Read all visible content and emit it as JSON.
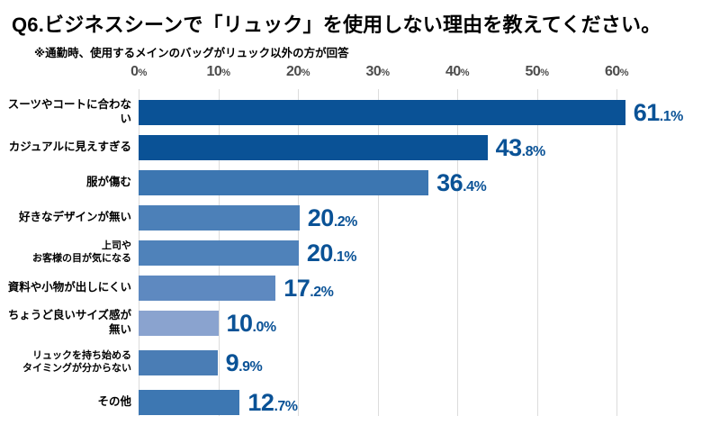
{
  "chart_data": {
    "type": "bar",
    "orientation": "horizontal",
    "title": "Q6.ビジネスシーンで「リュック」を使用しない理由を教えてください。",
    "subtitle": "※通勤時、使用するメインのバッグがリュック以外の方が回答",
    "categories": [
      "スーツやコートに合わない",
      "カジュアルに見えすぎる",
      "服が傷む",
      "好きなデザインが無い",
      "上司や\nお客様の目が気になる",
      "資料や小物が出しにくい",
      "ちょうど良いサイズ感が無い",
      "リュックを持ち始める\nタイミングが分からない",
      "その他"
    ],
    "values": [
      61.1,
      43.8,
      36.4,
      20.2,
      20.1,
      17.2,
      10.0,
      9.9,
      12.7
    ],
    "value_labels": [
      "61.1%",
      "43.8%",
      "36.4%",
      "20.2%",
      "20.1%",
      "17.2%",
      "10.0%",
      "9.9%",
      "12.7%"
    ],
    "bar_colors": [
      "#0a5296",
      "#0a5296",
      "#3c76b1",
      "#4c80b8",
      "#4f82ba",
      "#5e89c0",
      "#8aa3cf",
      "#4a7db5",
      "#3d77b2"
    ],
    "axis_ticks": [
      "0%",
      "10%",
      "20%",
      "30%",
      "40%",
      "50%",
      "60%"
    ],
    "xlabel": "",
    "ylabel": "",
    "xlim": [
      0,
      62
    ],
    "grid": true,
    "legend": "none",
    "colors": {
      "value_text": "#0a5296",
      "axis_text": "#4d4d4d",
      "gridline": "#dcdcdc",
      "tick": "#b5b5b5",
      "background": "#ffffff"
    }
  }
}
